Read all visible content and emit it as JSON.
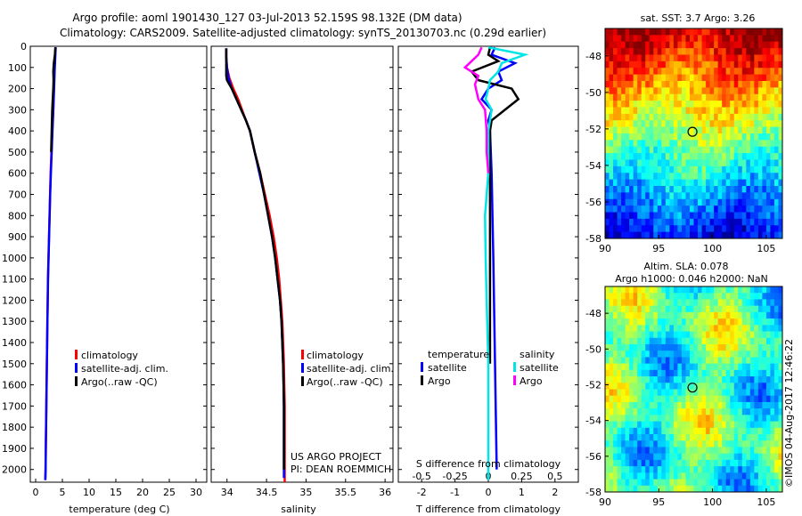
{
  "header": {
    "line1": "Argo profile: aoml 1901430_127 03-Jul-2013 52.159S 98.132E (DM data)",
    "line2": "Climatology: CARS2009. Satellite-adjusted climatology: synTS_20130703.nc (0.29d earlier)"
  },
  "colors": {
    "climatology": "#ff0000",
    "satellite_adj": "#0000ff",
    "argo": "#000000",
    "sal_satellite": "#00e5e5",
    "sal_argo": "#ff00ff"
  },
  "chart_data": [
    {
      "id": "temperature",
      "type": "line",
      "xlabel": "temperature (deg C)",
      "ylabel": "",
      "xlim": [
        -1,
        32
      ],
      "ylim": [
        2060,
        0
      ],
      "xticks": [
        "0",
        "5",
        "10",
        "15",
        "20",
        "25",
        "30"
      ],
      "yticks": [
        "0",
        "100",
        "200",
        "300",
        "400",
        "500",
        "600",
        "700",
        "800",
        "900",
        "1000",
        "1100",
        "1200",
        "1300",
        "1400",
        "1500",
        "1600",
        "1700",
        "1800",
        "1900",
        "2000"
      ],
      "legend": [
        "climatology",
        "satellite-adj. clim.",
        "Argo(..raw -QC)"
      ],
      "series": [
        {
          "name": "climatology",
          "color": "#ff0000",
          "points": [
            [
              3.7,
              5
            ],
            [
              3.6,
              60
            ],
            [
              3.5,
              120
            ],
            [
              3.4,
              200
            ],
            [
              3.3,
              300
            ],
            [
              3.1,
              400
            ],
            [
              2.95,
              500
            ],
            [
              2.8,
              600
            ],
            [
              2.7,
              700
            ],
            [
              2.6,
              800
            ],
            [
              2.5,
              900
            ],
            [
              2.4,
              1000
            ],
            [
              2.3,
              1100
            ],
            [
              2.25,
              1200
            ],
            [
              2.2,
              1300
            ],
            [
              2.15,
              1400
            ],
            [
              2.1,
              1500
            ],
            [
              2.05,
              1600
            ],
            [
              2.0,
              1700
            ],
            [
              1.95,
              1800
            ],
            [
              1.9,
              1900
            ],
            [
              1.85,
              2000
            ],
            [
              1.8,
              2050
            ]
          ]
        },
        {
          "name": "satellite-adj. clim.",
          "color": "#0000ff",
          "points": [
            [
              3.75,
              5
            ],
            [
              3.65,
              60
            ],
            [
              3.55,
              120
            ],
            [
              3.45,
              200
            ],
            [
              3.3,
              300
            ],
            [
              3.15,
              400
            ],
            [
              3.0,
              500
            ],
            [
              2.85,
              600
            ],
            [
              2.72,
              700
            ],
            [
              2.62,
              800
            ],
            [
              2.52,
              900
            ],
            [
              2.42,
              1000
            ],
            [
              2.32,
              1100
            ],
            [
              2.26,
              1200
            ],
            [
              2.2,
              1300
            ],
            [
              2.15,
              1400
            ],
            [
              2.1,
              1500
            ],
            [
              2.05,
              1600
            ],
            [
              2.0,
              1700
            ],
            [
              1.95,
              1800
            ],
            [
              1.9,
              1900
            ],
            [
              1.86,
              2000
            ],
            [
              1.82,
              2050
            ]
          ]
        },
        {
          "name": "Argo(..raw -QC)",
          "color": "#000000",
          "points": [
            [
              3.7,
              5
            ],
            [
              3.6,
              40
            ],
            [
              3.4,
              80
            ],
            [
              3.3,
              120
            ],
            [
              3.35,
              160
            ],
            [
              3.3,
              200
            ],
            [
              3.2,
              250
            ],
            [
              3.1,
              300
            ],
            [
              3.05,
              350
            ],
            [
              3.0,
              400
            ],
            [
              2.95,
              450
            ],
            [
              2.9,
              500
            ]
          ]
        }
      ]
    },
    {
      "id": "salinity",
      "type": "line",
      "xlabel": "salinity",
      "ylabel": "",
      "xlim": [
        33.8,
        36.1
      ],
      "ylim": [
        2060,
        0
      ],
      "xticks": [
        "34",
        "34.5",
        "35",
        "35.5",
        "36"
      ],
      "legend": [
        "climatology",
        "satellite-adj. clim.",
        "Argo(..raw -QC)"
      ],
      "annotations": [
        "US ARGO PROJECT",
        "PI: DEAN ROEMMICH"
      ],
      "series": [
        {
          "name": "climatology",
          "color": "#ff0000",
          "points": [
            [
              33.99,
              10
            ],
            [
              33.99,
              50
            ],
            [
              34.0,
              100
            ],
            [
              34.03,
              150
            ],
            [
              34.08,
              200
            ],
            [
              34.14,
              250
            ],
            [
              34.19,
              300
            ],
            [
              34.24,
              350
            ],
            [
              34.29,
              400
            ],
            [
              34.35,
              500
            ],
            [
              34.42,
              600
            ],
            [
              34.48,
              700
            ],
            [
              34.54,
              800
            ],
            [
              34.59,
              900
            ],
            [
              34.63,
              1000
            ],
            [
              34.66,
              1100
            ],
            [
              34.68,
              1200
            ],
            [
              34.7,
              1300
            ],
            [
              34.71,
              1400
            ],
            [
              34.72,
              1500
            ],
            [
              34.725,
              1600
            ],
            [
              34.73,
              1700
            ],
            [
              34.73,
              1800
            ],
            [
              34.73,
              1900
            ],
            [
              34.73,
              2000
            ],
            [
              34.73,
              2060
            ]
          ]
        },
        {
          "name": "satellite-adj. clim.",
          "color": "#0000ff",
          "points": [
            [
              33.99,
              10
            ],
            [
              33.99,
              50
            ],
            [
              34.0,
              100
            ],
            [
              34.02,
              150
            ],
            [
              34.06,
              200
            ],
            [
              34.12,
              250
            ],
            [
              34.18,
              300
            ],
            [
              34.24,
              350
            ],
            [
              34.29,
              400
            ],
            [
              34.35,
              500
            ],
            [
              34.41,
              600
            ],
            [
              34.47,
              700
            ],
            [
              34.52,
              800
            ],
            [
              34.57,
              900
            ],
            [
              34.61,
              1000
            ],
            [
              34.64,
              1100
            ],
            [
              34.67,
              1200
            ],
            [
              34.69,
              1300
            ],
            [
              34.7,
              1400
            ],
            [
              34.71,
              1500
            ],
            [
              34.715,
              1600
            ],
            [
              34.72,
              1700
            ],
            [
              34.72,
              1800
            ],
            [
              34.72,
              1900
            ],
            [
              34.72,
              2000
            ],
            [
              34.72,
              2040
            ]
          ]
        },
        {
          "name": "Argo(..raw -QC)",
          "color": "#000000",
          "points": [
            [
              33.99,
              10
            ],
            [
              33.99,
              60
            ],
            [
              33.99,
              100
            ],
            [
              33.99,
              140
            ],
            [
              34.0,
              160
            ],
            [
              34.06,
              200
            ],
            [
              34.12,
              250
            ],
            [
              34.18,
              300
            ],
            [
              34.24,
              350
            ],
            [
              34.29,
              400
            ],
            [
              34.35,
              500
            ],
            [
              34.42,
              600
            ],
            [
              34.47,
              700
            ],
            [
              34.52,
              800
            ],
            [
              34.57,
              900
            ],
            [
              34.61,
              1000
            ],
            [
              34.64,
              1100
            ],
            [
              34.67,
              1200
            ],
            [
              34.69,
              1300
            ],
            [
              34.7,
              1400
            ],
            [
              34.71,
              1500
            ],
            [
              34.715,
              1600
            ],
            [
              34.72,
              1700
            ],
            [
              34.72,
              1800
            ],
            [
              34.72,
              1900
            ],
            [
              34.72,
              2000
            ]
          ]
        }
      ]
    },
    {
      "id": "difference",
      "type": "line",
      "xlabel": "T difference from climatology",
      "xlabel_top": "S difference from climatology",
      "xlim": [
        -2.7,
        2.7
      ],
      "ylim": [
        2060,
        0
      ],
      "xticks": [
        "-2",
        "-1",
        "0",
        "1",
        "2"
      ],
      "xticks_S": [
        "-0.5",
        "-0.25",
        "0",
        "0.25",
        "0.5"
      ],
      "legend": {
        "temperature_title": "temperature",
        "salinity_title": "salinity",
        "entries": [
          "satellite",
          "Argo",
          "satellite",
          "Argo"
        ]
      },
      "series": [
        {
          "name": "temperature satellite",
          "color": "#0000ff",
          "points": [
            [
              0.2,
              5
            ],
            [
              0.1,
              40
            ],
            [
              0.8,
              80
            ],
            [
              0.3,
              120
            ],
            [
              0.4,
              160
            ],
            [
              0.0,
              200
            ],
            [
              -0.2,
              250
            ],
            [
              0.1,
              300
            ],
            [
              0.0,
              350
            ],
            [
              0.05,
              400
            ],
            [
              0.1,
              600
            ],
            [
              0.15,
              1000
            ],
            [
              0.2,
              1500
            ],
            [
              0.25,
              2000
            ]
          ]
        },
        {
          "name": "temperature Argo",
          "color": "#000000",
          "points": [
            [
              0.05,
              5
            ],
            [
              0.0,
              40
            ],
            [
              0.3,
              70
            ],
            [
              -0.5,
              120
            ],
            [
              -0.3,
              160
            ],
            [
              0.7,
              200
            ],
            [
              0.9,
              250
            ],
            [
              0.5,
              300
            ],
            [
              0.1,
              350
            ],
            [
              0.05,
              400
            ],
            [
              0.05,
              500
            ],
            [
              0.05,
              1000
            ],
            [
              0.05,
              1500
            ]
          ]
        },
        {
          "name": "salinity satellite",
          "color": "#00e5e5",
          "points": [
            [
              0.0,
              5
            ],
            [
              1.1,
              40
            ],
            [
              0.4,
              80
            ],
            [
              0.3,
              120
            ],
            [
              0.05,
              160
            ],
            [
              0.0,
              200
            ],
            [
              -0.08,
              250
            ],
            [
              0.1,
              300
            ],
            [
              0.0,
              400
            ],
            [
              0.0,
              600
            ],
            [
              -0.1,
              800
            ],
            [
              -0.08,
              1000
            ],
            [
              -0.05,
              1200
            ],
            [
              0.0,
              1500
            ],
            [
              0.0,
              2000
            ],
            [
              0.0,
              2050
            ]
          ]
        },
        {
          "name": "salinity Argo",
          "color": "#ff00ff",
          "points": [
            [
              -0.2,
              5
            ],
            [
              -0.3,
              40
            ],
            [
              -0.7,
              100
            ],
            [
              -0.3,
              140
            ],
            [
              -0.4,
              180
            ],
            [
              -0.3,
              250
            ],
            [
              -0.1,
              300
            ],
            [
              -0.05,
              400
            ],
            [
              -0.05,
              500
            ],
            [
              0.0,
              600
            ]
          ]
        }
      ]
    }
  ],
  "maps": [
    {
      "id": "sst-map",
      "title_lines": [
        "sat. SST: 3.7 Argo: 3.26"
      ],
      "xlim": [
        90,
        106.5
      ],
      "ylim": [
        -58,
        -46.5
      ],
      "xticks": [
        "90",
        "95",
        "100",
        "105"
      ],
      "yticks": [
        "-48",
        "-50",
        "-52",
        "-54",
        "-56",
        "-58"
      ],
      "marker": [
        98.132,
        -52.159
      ]
    },
    {
      "id": "sla-map",
      "title_lines": [
        "Altim. SLA: 0.078",
        "Argo h1000: 0.046 h2000: NaN"
      ],
      "xlim": [
        90,
        106.5
      ],
      "ylim": [
        -58,
        -46.5
      ],
      "xticks": [
        "90",
        "95",
        "100",
        "105"
      ],
      "yticks": [
        "-48",
        "-50",
        "-52",
        "-54",
        "-56",
        "-58"
      ],
      "marker": [
        98.132,
        -52.159
      ]
    }
  ],
  "credit": "©IMOS 04-Aug-2017 12:46:22"
}
